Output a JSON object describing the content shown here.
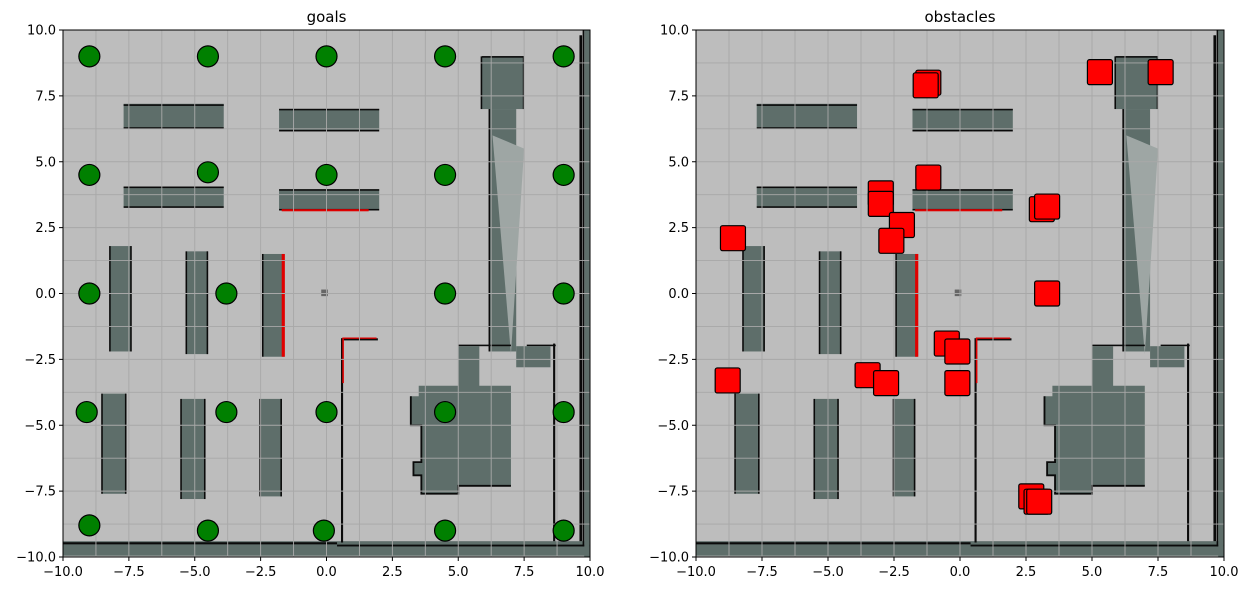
{
  "chart_data": [
    {
      "type": "scatter",
      "title": "goals",
      "xlim": [
        -10,
        10
      ],
      "ylim": [
        -10,
        10
      ],
      "xticks": [
        -10.0,
        -7.5,
        -5.0,
        -2.5,
        0.0,
        2.5,
        5.0,
        7.5,
        10.0
      ],
      "yticks": [
        -10.0,
        -7.5,
        -5.0,
        -2.5,
        0.0,
        2.5,
        5.0,
        7.5,
        10.0
      ],
      "xtick_labels": [
        "−10.0",
        "−7.5",
        "−5.0",
        "−2.5",
        "0.0",
        "2.5",
        "5.0",
        "7.5",
        "10.0"
      ],
      "ytick_labels": [
        "−10.0",
        "−7.5",
        "−5.0",
        "−2.5",
        "0.0",
        "2.5",
        "5.0",
        "7.5",
        "10.0"
      ],
      "grid": true,
      "marker": "circle",
      "marker_color": "#008000",
      "points": [
        {
          "x": -9,
          "y": 9
        },
        {
          "x": -4.5,
          "y": 9
        },
        {
          "x": 0,
          "y": 9
        },
        {
          "x": 4.5,
          "y": 9
        },
        {
          "x": 9,
          "y": 9
        },
        {
          "x": -9,
          "y": 4.5
        },
        {
          "x": -4.5,
          "y": 4.6
        },
        {
          "x": 0,
          "y": 4.5
        },
        {
          "x": 4.5,
          "y": 4.5
        },
        {
          "x": 9,
          "y": 4.5
        },
        {
          "x": -9,
          "y": 0
        },
        {
          "x": -3.8,
          "y": 0
        },
        {
          "x": 4.5,
          "y": 0
        },
        {
          "x": 9,
          "y": 0
        },
        {
          "x": -9.1,
          "y": -4.5
        },
        {
          "x": -3.8,
          "y": -4.5
        },
        {
          "x": 0,
          "y": -4.5
        },
        {
          "x": 4.5,
          "y": -4.5
        },
        {
          "x": 9,
          "y": -4.5
        },
        {
          "x": -9,
          "y": -8.8
        },
        {
          "x": -4.5,
          "y": -9
        },
        {
          "x": -0.1,
          "y": -9
        },
        {
          "x": 4.5,
          "y": -9
        },
        {
          "x": 9,
          "y": -9
        }
      ]
    },
    {
      "type": "scatter",
      "title": "obstacles",
      "xlim": [
        -10,
        10
      ],
      "ylim": [
        -10,
        10
      ],
      "xticks": [
        -10.0,
        -7.5,
        -5.0,
        -2.5,
        0.0,
        2.5,
        5.0,
        7.5,
        10.0
      ],
      "yticks": [
        -10.0,
        -7.5,
        -5.0,
        -2.5,
        0.0,
        2.5,
        5.0,
        7.5,
        10.0
      ],
      "xtick_labels": [
        "−10.0",
        "−7.5",
        "−5.0",
        "−2.5",
        "0.0",
        "2.5",
        "5.0",
        "7.5",
        "10.0"
      ],
      "ytick_labels": [
        "−10.0",
        "−7.5",
        "−5.0",
        "−2.5",
        "0.0",
        "2.5",
        "5.0",
        "7.5",
        "10.0"
      ],
      "grid": true,
      "marker": "square",
      "marker_color": "#ff0000",
      "points": [
        {
          "x": -1.2,
          "y": 8.0
        },
        {
          "x": -1.3,
          "y": 7.9
        },
        {
          "x": 5.3,
          "y": 8.4
        },
        {
          "x": 7.6,
          "y": 8.4
        },
        {
          "x": -1.2,
          "y": 4.4
        },
        {
          "x": -3.0,
          "y": 3.8
        },
        {
          "x": -3.0,
          "y": 3.4
        },
        {
          "x": -2.2,
          "y": 2.6
        },
        {
          "x": -2.6,
          "y": 2.0
        },
        {
          "x": -8.6,
          "y": 2.1
        },
        {
          "x": 3.1,
          "y": 3.2
        },
        {
          "x": 3.3,
          "y": 3.3
        },
        {
          "x": 3.3,
          "y": 0.0
        },
        {
          "x": -0.5,
          "y": -1.9
        },
        {
          "x": -0.1,
          "y": -2.2
        },
        {
          "x": -0.1,
          "y": -3.4
        },
        {
          "x": -3.5,
          "y": -3.1
        },
        {
          "x": -2.8,
          "y": -3.4
        },
        {
          "x": -8.8,
          "y": -3.3
        },
        {
          "x": 2.7,
          "y": -7.7
        },
        {
          "x": 2.9,
          "y": -7.9
        },
        {
          "x": 3.0,
          "y": -7.9
        }
      ]
    }
  ],
  "colors": {
    "floor": "#bdbdbd",
    "wall": "#5e6e6a",
    "wall_edge": "#0a0a0a",
    "highlight": "#e00000",
    "grid": "#a8a8a8"
  }
}
